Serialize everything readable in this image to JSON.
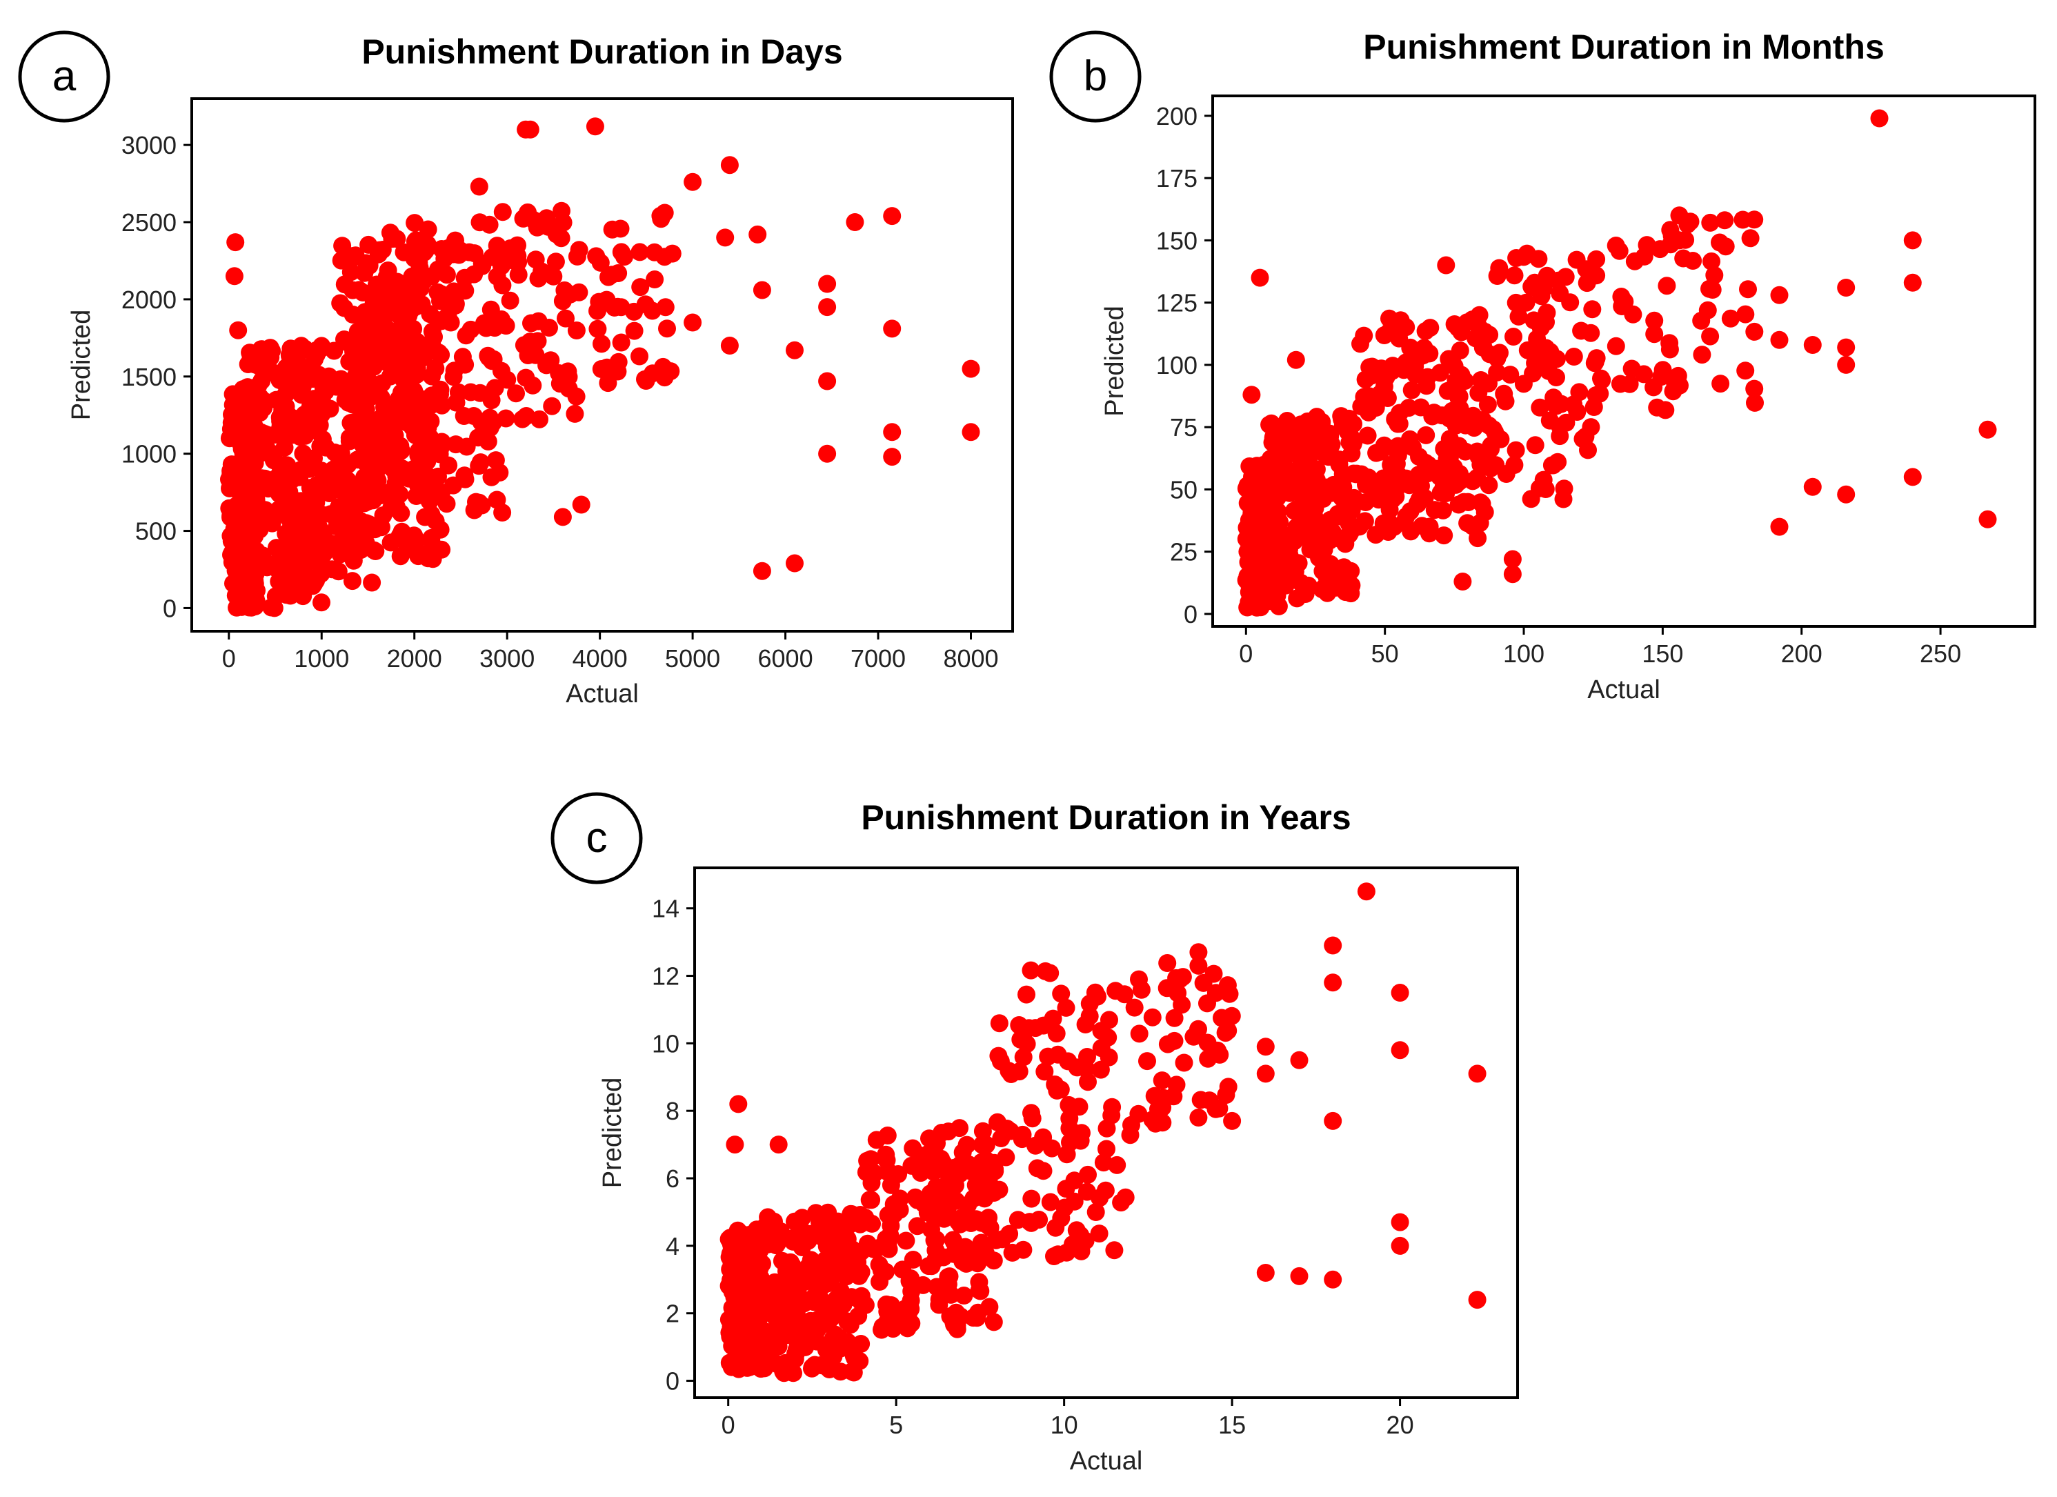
{
  "chart_data": [
    {
      "type": "scatter",
      "badge": "a",
      "title": "Punishment Duration in Days",
      "xlabel": "Actual",
      "ylabel": "Predicted",
      "xlim": [
        -400,
        8450
      ],
      "ylim": [
        -150,
        3300
      ],
      "xticks": [
        0,
        1000,
        2000,
        3000,
        4000,
        5000,
        6000,
        7000,
        8000
      ],
      "yticks": [
        0,
        500,
        1000,
        1500,
        2000,
        2500,
        3000
      ],
      "color": "#ff0000",
      "clusters": [
        {
          "x": [
            0,
            300
          ],
          "y": [
            0,
            1400
          ],
          "n": 140
        },
        {
          "x": [
            150,
            1000
          ],
          "y": [
            0,
            1700
          ],
          "n": 220
        },
        {
          "x": [
            600,
            1600
          ],
          "y": [
            150,
            1700
          ],
          "n": 120
        },
        {
          "x": [
            1200,
            2300
          ],
          "y": [
            300,
            2400
          ],
          "n": 260
        },
        {
          "x": [
            1700,
            3000
          ],
          "y": [
            600,
            2500
          ],
          "n": 140
        },
        {
          "x": [
            2800,
            3800
          ],
          "y": [
            1100,
            2600
          ],
          "n": 70
        },
        {
          "x": [
            3900,
            4800
          ],
          "y": [
            1400,
            2650
          ],
          "n": 45
        }
      ],
      "points": [
        [
          70,
          2370
        ],
        [
          60,
          2150
        ],
        [
          100,
          1800
        ],
        [
          3200,
          3100
        ],
        [
          3950,
          3120
        ],
        [
          5000,
          2760
        ],
        [
          5400,
          2870
        ],
        [
          6750,
          2500
        ],
        [
          7150,
          2540
        ],
        [
          5350,
          2400
        ],
        [
          5700,
          2420
        ],
        [
          5750,
          2060
        ],
        [
          5000,
          1850
        ],
        [
          5400,
          1700
        ],
        [
          6450,
          2100
        ],
        [
          6450,
          1950
        ],
        [
          6450,
          1470
        ],
        [
          6450,
          1000
        ],
        [
          6100,
          1670
        ],
        [
          7150,
          1810
        ],
        [
          7150,
          1140
        ],
        [
          7150,
          980
        ],
        [
          8000,
          1550
        ],
        [
          8000,
          1140
        ],
        [
          5750,
          240
        ],
        [
          6100,
          290
        ],
        [
          3800,
          670
        ],
        [
          3600,
          590
        ],
        [
          3250,
          3100
        ],
        [
          2700,
          2730
        ]
      ]
    },
    {
      "type": "scatter",
      "badge": "b",
      "title": "Punishment Duration in Months",
      "xlabel": "Actual",
      "ylabel": "Predicted",
      "xlim": [
        -12,
        284
      ],
      "ylim": [
        -5,
        208
      ],
      "xticks": [
        0,
        50,
        100,
        150,
        200,
        250
      ],
      "yticks": [
        0,
        25,
        50,
        75,
        100,
        125,
        150,
        175,
        200
      ],
      "color": "#ff0000",
      "clusters": [
        {
          "x": [
            0,
            12
          ],
          "y": [
            2,
            60
          ],
          "n": 180
        },
        {
          "x": [
            8,
            40
          ],
          "y": [
            5,
            80
          ],
          "n": 200
        },
        {
          "x": [
            40,
            90
          ],
          "y": [
            30,
            120
          ],
          "n": 200
        },
        {
          "x": [
            90,
            130
          ],
          "y": [
            45,
            145
          ],
          "n": 90
        },
        {
          "x": [
            130,
            185
          ],
          "y": [
            80,
            160
          ],
          "n": 60
        }
      ],
      "points": [
        [
          228,
          199
        ],
        [
          240,
          150
        ],
        [
          240,
          133
        ],
        [
          267,
          74
        ],
        [
          267,
          38
        ],
        [
          240,
          55
        ],
        [
          216,
          131
        ],
        [
          216,
          107
        ],
        [
          216,
          100
        ],
        [
          216,
          48
        ],
        [
          204,
          108
        ],
        [
          204,
          51
        ],
        [
          192,
          128
        ],
        [
          192,
          110
        ],
        [
          192,
          35
        ],
        [
          5,
          135
        ],
        [
          18,
          102
        ],
        [
          2,
          88
        ],
        [
          156,
          160
        ],
        [
          156,
          150
        ],
        [
          72,
          140
        ],
        [
          84,
          120
        ],
        [
          96,
          22
        ],
        [
          96,
          16
        ],
        [
          78,
          13
        ]
      ]
    },
    {
      "type": "scatter",
      "badge": "c",
      "title": "Punishment Duration in Years",
      "xlabel": "Actual",
      "ylabel": "Predicted",
      "xlim": [
        -1,
        23.5
      ],
      "ylim": [
        -0.5,
        15.2
      ],
      "xticks": [
        0,
        5,
        10,
        15,
        20
      ],
      "yticks": [
        0,
        2,
        4,
        6,
        8,
        10,
        12,
        14
      ],
      "color": "#ff0000",
      "clusters": [
        {
          "x": [
            0,
            1
          ],
          "y": [
            0.2,
            4.5
          ],
          "n": 160
        },
        {
          "x": [
            1,
            4
          ],
          "y": [
            0.2,
            5
          ],
          "n": 200
        },
        {
          "x": [
            4,
            8
          ],
          "y": [
            1.5,
            7.5
          ],
          "n": 180
        },
        {
          "x": [
            8,
            12
          ],
          "y": [
            3.5,
            12.2
          ],
          "n": 110
        },
        {
          "x": [
            12,
            15
          ],
          "y": [
            7.5,
            12.5
          ],
          "n": 50
        }
      ],
      "points": [
        [
          19,
          14.5
        ],
        [
          18,
          12.9
        ],
        [
          18,
          11.8
        ],
        [
          18,
          7.7
        ],
        [
          18,
          3.0
        ],
        [
          20,
          11.5
        ],
        [
          20,
          9.8
        ],
        [
          20,
          4.7
        ],
        [
          20,
          4.0
        ],
        [
          22.3,
          9.1
        ],
        [
          22.3,
          2.4
        ],
        [
          16,
          9.9
        ],
        [
          16,
          9.1
        ],
        [
          16,
          3.2
        ],
        [
          17,
          9.5
        ],
        [
          17,
          3.1
        ],
        [
          0.3,
          8.2
        ],
        [
          0.2,
          7.0
        ],
        [
          1.5,
          7.0
        ],
        [
          15,
          7.7
        ],
        [
          14,
          7.8
        ],
        [
          14,
          12.7
        ],
        [
          14,
          12.3
        ]
      ]
    }
  ]
}
